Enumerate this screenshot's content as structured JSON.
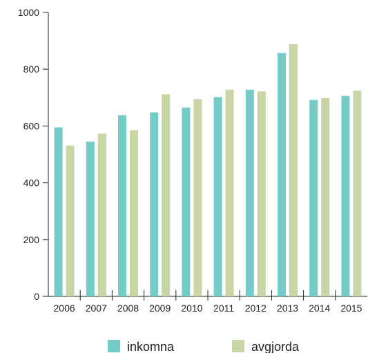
{
  "chart_data": {
    "type": "bar",
    "categories": [
      "2006",
      "2007",
      "2008",
      "2009",
      "2010",
      "2011",
      "2012",
      "2013",
      "2014",
      "2015"
    ],
    "series": [
      {
        "name": "inkomna",
        "color": "#74cbc8",
        "values": [
          595,
          545,
          638,
          648,
          665,
          702,
          728,
          857,
          692,
          706
        ]
      },
      {
        "name": "avgjorda",
        "color": "#c8d5a4",
        "values": [
          531,
          573,
          585,
          712,
          695,
          728,
          722,
          888,
          698,
          724
        ]
      }
    ],
    "ylim": [
      0,
      1000
    ],
    "yticks": [
      0,
      200,
      400,
      600,
      800,
      1000
    ],
    "grid": false,
    "legend": "bottom"
  }
}
